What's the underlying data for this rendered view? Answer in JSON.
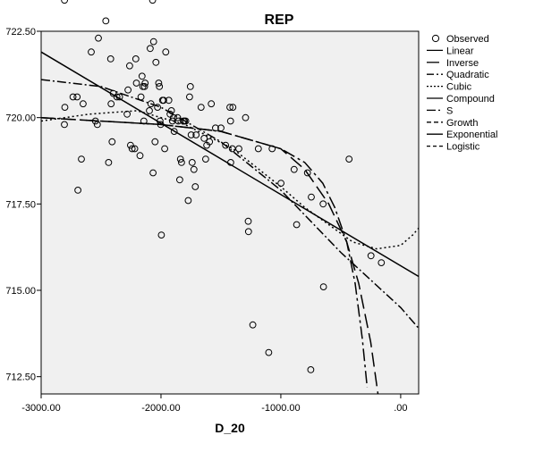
{
  "chart_data": {
    "type": "scatter",
    "title": "REP",
    "xlabel": "D_20",
    "ylabel": "",
    "xlim": [
      -3000,
      150
    ],
    "ylim": [
      712.0,
      722.5
    ],
    "x_ticks": [
      -3000,
      -2000,
      -1000,
      0
    ],
    "x_tick_labels": [
      "-3000.00",
      "-2000.00",
      "-1000.00",
      ".00"
    ],
    "y_ticks": [
      712.5,
      715.0,
      717.5,
      720.0,
      722.5
    ],
    "y_tick_labels": [
      "712.50",
      "715.00",
      "717.50",
      "720.00",
      "722.50"
    ],
    "grid": false,
    "legend_position": "right",
    "observed": [
      {
        "x": -2805,
        "y": 723.4
      },
      {
        "x": -2802,
        "y": 720.3
      },
      {
        "x": -2806,
        "y": 719.8
      },
      {
        "x": -2734,
        "y": 720.6
      },
      {
        "x": -2700,
        "y": 720.6
      },
      {
        "x": -2693,
        "y": 717.9
      },
      {
        "x": -2664,
        "y": 718.8
      },
      {
        "x": -2650,
        "y": 720.4
      },
      {
        "x": -2582,
        "y": 721.9
      },
      {
        "x": -2547,
        "y": 719.9
      },
      {
        "x": -2531,
        "y": 719.8
      },
      {
        "x": -2522,
        "y": 722.3
      },
      {
        "x": -2460,
        "y": 722.8
      },
      {
        "x": -2452,
        "y": 723.7
      },
      {
        "x": -2437,
        "y": 718.7
      },
      {
        "x": -2420,
        "y": 721.7
      },
      {
        "x": -2416,
        "y": 720.4
      },
      {
        "x": -2408,
        "y": 719.3
      },
      {
        "x": -2398,
        "y": 720.7
      },
      {
        "x": -2368,
        "y": 720.6
      },
      {
        "x": -2346,
        "y": 720.6
      },
      {
        "x": -2283,
        "y": 720.1
      },
      {
        "x": -2275,
        "y": 720.8
      },
      {
        "x": -2262,
        "y": 721.5
      },
      {
        "x": -2254,
        "y": 719.2
      },
      {
        "x": -2241,
        "y": 719.1
      },
      {
        "x": -2219,
        "y": 719.1
      },
      {
        "x": -2210,
        "y": 721.7
      },
      {
        "x": -2205,
        "y": 721.0
      },
      {
        "x": -2175,
        "y": 718.9
      },
      {
        "x": -2167,
        "y": 720.6
      },
      {
        "x": -2158,
        "y": 721.2
      },
      {
        "x": -2151,
        "y": 720.9
      },
      {
        "x": -2143,
        "y": 719.9
      },
      {
        "x": -2137,
        "y": 720.9
      },
      {
        "x": -2133,
        "y": 721.0
      },
      {
        "x": -2097,
        "y": 720.2
      },
      {
        "x": -2090,
        "y": 722.0
      },
      {
        "x": -2084,
        "y": 720.4
      },
      {
        "x": -2070,
        "y": 723.4
      },
      {
        "x": -2066,
        "y": 718.4
      },
      {
        "x": -2062,
        "y": 722.2
      },
      {
        "x": -2050,
        "y": 719.3
      },
      {
        "x": -2042,
        "y": 721.6
      },
      {
        "x": -2029,
        "y": 720.3
      },
      {
        "x": -2019,
        "y": 721.0
      },
      {
        "x": -2013,
        "y": 720.9
      },
      {
        "x": -2008,
        "y": 719.9
      },
      {
        "x": -2003,
        "y": 719.8
      },
      {
        "x": -1997,
        "y": 716.6
      },
      {
        "x": -1987,
        "y": 720.5
      },
      {
        "x": -1978,
        "y": 720.5
      },
      {
        "x": -1969,
        "y": 719.1
      },
      {
        "x": -1960,
        "y": 721.9
      },
      {
        "x": -1935,
        "y": 720.5
      },
      {
        "x": -1924,
        "y": 720.1
      },
      {
        "x": -1913,
        "y": 720.2
      },
      {
        "x": -1904,
        "y": 719.9
      },
      {
        "x": -1897,
        "y": 720.0
      },
      {
        "x": -1890,
        "y": 719.6
      },
      {
        "x": -1862,
        "y": 720.0
      },
      {
        "x": -1855,
        "y": 719.9
      },
      {
        "x": -1844,
        "y": 718.2
      },
      {
        "x": -1838,
        "y": 718.8
      },
      {
        "x": -1829,
        "y": 718.7
      },
      {
        "x": -1813,
        "y": 719.9
      },
      {
        "x": -1804,
        "y": 719.9
      },
      {
        "x": -1794,
        "y": 719.9
      },
      {
        "x": -1773,
        "y": 717.6
      },
      {
        "x": -1762,
        "y": 720.6
      },
      {
        "x": -1755,
        "y": 720.9
      },
      {
        "x": -1748,
        "y": 719.5
      },
      {
        "x": -1740,
        "y": 718.7
      },
      {
        "x": -1725,
        "y": 718.5
      },
      {
        "x": -1714,
        "y": 718.0
      },
      {
        "x": -1707,
        "y": 719.5
      },
      {
        "x": -1665,
        "y": 720.3
      },
      {
        "x": -1640,
        "y": 719.4
      },
      {
        "x": -1627,
        "y": 718.8
      },
      {
        "x": -1618,
        "y": 719.2
      },
      {
        "x": -1595,
        "y": 719.3
      },
      {
        "x": -1580,
        "y": 720.4
      },
      {
        "x": -1545,
        "y": 719.7
      },
      {
        "x": -1500,
        "y": 719.7
      },
      {
        "x": -1461,
        "y": 719.2
      },
      {
        "x": -1425,
        "y": 720.3
      },
      {
        "x": -1420,
        "y": 719.9
      },
      {
        "x": -1418,
        "y": 718.7
      },
      {
        "x": -1405,
        "y": 719.1
      },
      {
        "x": -1400,
        "y": 720.3
      },
      {
        "x": -1350,
        "y": 719.1
      },
      {
        "x": -1294,
        "y": 720.0
      },
      {
        "x": -1272,
        "y": 717.0
      },
      {
        "x": -1270,
        "y": 716.7
      },
      {
        "x": -1234,
        "y": 714.0
      },
      {
        "x": -1188,
        "y": 719.1
      },
      {
        "x": -1101,
        "y": 713.2
      },
      {
        "x": -1073,
        "y": 719.1
      },
      {
        "x": -999,
        "y": 718.1
      },
      {
        "x": -889,
        "y": 718.5
      },
      {
        "x": -868,
        "y": 716.9
      },
      {
        "x": -778,
        "y": 718.4
      },
      {
        "x": -750,
        "y": 712.7
      },
      {
        "x": -746,
        "y": 717.7
      },
      {
        "x": -647,
        "y": 717.5
      },
      {
        "x": -644,
        "y": 715.1
      },
      {
        "x": -431,
        "y": 718.8
      },
      {
        "x": -248,
        "y": 716.0
      },
      {
        "x": -161,
        "y": 715.8
      }
    ],
    "series": [
      {
        "name": "Observed",
        "style": "circle-open"
      },
      {
        "name": "Linear",
        "style": "solid"
      },
      {
        "name": "Inverse",
        "style": "long-dash-gap"
      },
      {
        "name": "Quadratic",
        "style": "dash-dot"
      },
      {
        "name": "Cubic",
        "style": "dotted"
      },
      {
        "name": "Compound",
        "style": "solid"
      },
      {
        "name": "S",
        "style": "long-dash-dot"
      },
      {
        "name": "Growth",
        "style": "dashed"
      },
      {
        "name": "Exponential",
        "style": "solid"
      },
      {
        "name": "Logistic",
        "style": "short-dash"
      }
    ],
    "fit_lines": {
      "linear": [
        [
          -3000,
          721.9
        ],
        [
          150,
          715.4
        ]
      ],
      "quadratic": [
        [
          -3000,
          721.1
        ],
        [
          -2500,
          720.9
        ],
        [
          -2000,
          720.3
        ],
        [
          -1500,
          719.3
        ],
        [
          -1000,
          717.9
        ],
        [
          -500,
          716.1
        ],
        [
          0,
          714.5
        ],
        [
          150,
          713.9
        ]
      ],
      "cubic": [
        [
          -3000,
          719.9
        ],
        [
          -2600,
          720.1
        ],
        [
          -2200,
          720.2
        ],
        [
          -1800,
          719.8
        ],
        [
          -1400,
          719.1
        ],
        [
          -1000,
          718.0
        ],
        [
          -800,
          717.4
        ],
        [
          -600,
          716.9
        ],
        [
          -400,
          716.4
        ],
        [
          -200,
          716.2
        ],
        [
          0,
          716.3
        ],
        [
          100,
          716.6
        ],
        [
          150,
          716.8
        ]
      ],
      "s_curve": [
        [
          -3000,
          720.0
        ],
        [
          -2000,
          719.8
        ],
        [
          -1500,
          719.6
        ],
        [
          -1000,
          719.1
        ],
        [
          -800,
          718.7
        ],
        [
          -650,
          718.1
        ],
        [
          -550,
          717.4
        ],
        [
          -450,
          716.4
        ],
        [
          -380,
          715.2
        ],
        [
          -320,
          713.6
        ],
        [
          -280,
          712.2
        ]
      ],
      "inverse": [
        [
          -3000,
          720.0
        ],
        [
          -2000,
          719.8
        ],
        [
          -1500,
          719.6
        ],
        [
          -1000,
          719.1
        ],
        [
          -800,
          718.5
        ],
        [
          -600,
          717.5
        ],
        [
          -450,
          716.4
        ],
        [
          -350,
          715.2
        ],
        [
          -250,
          713.5
        ],
        [
          -190,
          712.0
        ]
      ],
      "growth": [
        [
          -3000,
          721.9
        ],
        [
          150,
          715.4
        ]
      ]
    }
  }
}
